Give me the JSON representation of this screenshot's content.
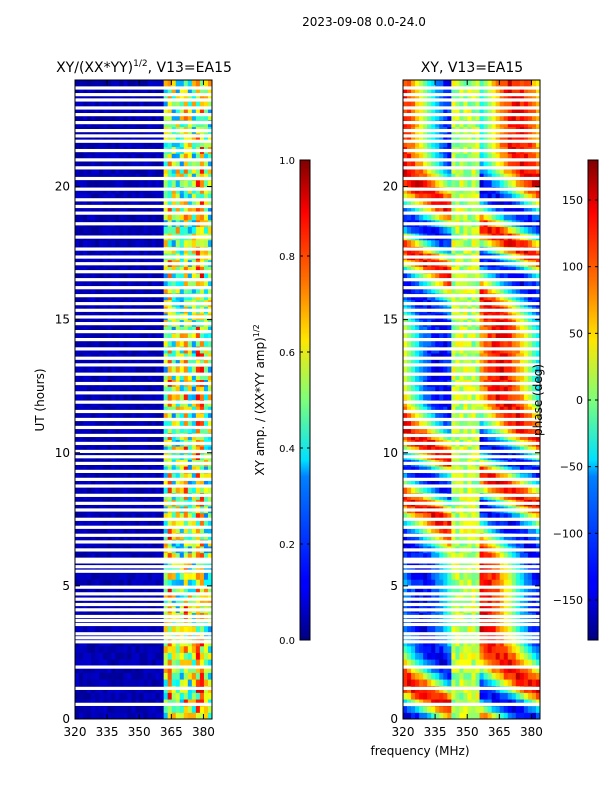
{
  "suptitle": "2023-09-08 0.0-24.0",
  "xlabel": "frequency (MHz)",
  "chart_data": [
    {
      "type": "heatmap",
      "title": "XY/(XX*YY)",
      "title_superscript": "1/2",
      "title_suffix": ", V13=EA15",
      "xlabel": "",
      "ylabel": "UT (hours)",
      "xlim": [
        320,
        384
      ],
      "ylim": [
        0,
        24
      ],
      "xticks": [
        320,
        335,
        350,
        365,
        380
      ],
      "yticks": [
        0,
        5,
        10,
        15,
        20
      ],
      "colormap": "jet",
      "colorbar": {
        "label": "XY amp. / (XX*YY amp)",
        "label_superscript": "1/2",
        "range": [
          0.0,
          1.0
        ],
        "ticks": [
          "0.0",
          "0.2",
          "0.4",
          "0.6",
          "0.8",
          "1.0"
        ],
        "tick_values": [
          0.0,
          0.2,
          0.4,
          0.6,
          0.8,
          1.0
        ]
      },
      "description_bands": [
        {
          "freq_range": [
            320,
            361
          ],
          "value": 0.03
        },
        {
          "freq_range": [
            361,
            384
          ],
          "value": 0.45
        }
      ]
    },
    {
      "type": "heatmap",
      "title": "XY, V13=EA15",
      "xlabel": "frequency (MHz)",
      "ylabel": "",
      "xlim": [
        320,
        384
      ],
      "ylim": [
        0,
        24
      ],
      "xticks": [
        320,
        335,
        350,
        365,
        380
      ],
      "yticks": [
        0,
        5,
        10,
        15,
        20
      ],
      "colormap": "jet",
      "colorbar": {
        "label": "phase (deg)",
        "range": [
          -180,
          180
        ],
        "ticks": [
          "−150",
          "−100",
          "−50",
          "0",
          "50",
          "100",
          "150"
        ],
        "tick_values": [
          -150,
          -100,
          -50,
          0,
          50,
          100,
          150
        ]
      }
    }
  ],
  "flagged_hours": [
    0.55,
    1.15,
    1.95,
    2.9,
    3.05,
    3.2,
    3.55,
    3.7,
    3.85,
    4.1,
    4.3,
    4.5,
    4.7,
    4.95,
    5.55,
    5.72,
    5.9,
    6.0,
    6.35,
    6.65,
    6.9,
    7.2,
    7.5,
    7.85,
    8.1,
    8.4,
    8.75,
    9.0,
    9.3,
    9.6,
    9.85,
    10.05,
    10.35,
    10.65,
    10.95,
    11.25,
    11.55,
    11.9,
    12.25,
    12.6,
    12.95,
    13.3,
    13.55,
    13.9,
    14.25,
    14.55,
    14.85,
    15.1,
    15.35,
    15.6,
    15.9,
    16.2,
    16.5,
    16.8,
    17.1,
    17.35,
    17.65,
    18.1,
    18.6,
    19.0,
    19.25,
    19.5,
    19.9,
    20.3,
    20.7,
    21.0,
    21.35,
    21.7,
    21.9,
    22.1,
    22.4,
    22.7,
    22.95,
    23.25,
    23.45,
    23.7
  ]
}
